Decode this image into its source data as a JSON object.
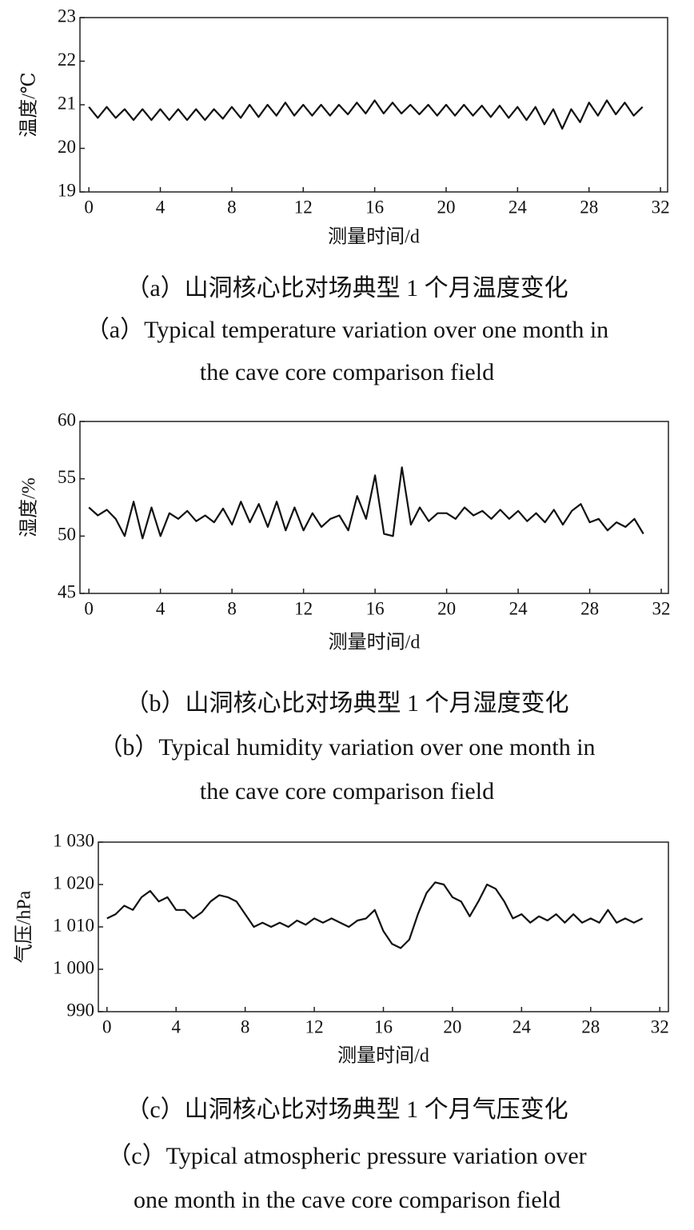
{
  "chart_data": [
    {
      "type": "line",
      "xlabel": "测量时间/d",
      "ylabel": "温度/℃",
      "caption_zh": "（a）山洞核心比对场典型 1 个月温度变化",
      "caption_en": [
        "（a）Typical temperature variation over one month in",
        "the cave core comparison field"
      ],
      "xlim": [
        -0.5,
        32.4
      ],
      "xticks": [
        0,
        4,
        8,
        12,
        16,
        20,
        24,
        28,
        32
      ],
      "ylim": [
        19,
        23
      ],
      "yticks": [
        19,
        20,
        21,
        22,
        23
      ],
      "x": [
        0,
        0.5,
        1,
        1.5,
        2,
        2.5,
        3,
        3.5,
        4,
        4.5,
        5,
        5.5,
        6,
        6.5,
        7,
        7.5,
        8,
        8.5,
        9,
        9.5,
        10,
        10.5,
        11,
        11.5,
        12,
        12.5,
        13,
        13.5,
        14,
        14.5,
        15,
        15.5,
        16,
        16.5,
        17,
        17.5,
        18,
        18.5,
        19,
        19.5,
        20,
        20.5,
        21,
        21.5,
        22,
        22.5,
        23,
        23.5,
        24,
        24.5,
        25,
        25.5,
        26,
        26.5,
        27,
        27.5,
        28,
        28.5,
        29,
        29.5,
        30,
        30.5,
        31
      ],
      "color": "#111111",
      "values": [
        20.95,
        20.7,
        20.95,
        20.7,
        20.9,
        20.65,
        20.9,
        20.65,
        20.9,
        20.65,
        20.9,
        20.65,
        20.9,
        20.65,
        20.9,
        20.68,
        20.95,
        20.7,
        21.0,
        20.72,
        21.0,
        20.75,
        21.05,
        20.75,
        21.0,
        20.75,
        21.0,
        20.75,
        21.0,
        20.78,
        21.05,
        20.8,
        21.1,
        20.8,
        21.05,
        20.8,
        21.0,
        20.78,
        21.0,
        20.75,
        21.0,
        20.75,
        21.0,
        20.75,
        20.98,
        20.72,
        20.98,
        20.7,
        20.95,
        20.65,
        20.95,
        20.55,
        20.9,
        20.45,
        20.9,
        20.6,
        21.05,
        20.75,
        21.1,
        20.78,
        21.05,
        20.75,
        20.95
      ]
    },
    {
      "type": "line",
      "xlabel": "测量时间/d",
      "ylabel": "湿度/%",
      "caption_zh": "（b）山洞核心比对场典型 1 个月湿度变化",
      "caption_en": [
        "（b）Typical humidity variation over one month in",
        "the cave core comparison field"
      ],
      "xlim": [
        -0.5,
        32.4
      ],
      "xticks": [
        0,
        4,
        8,
        12,
        16,
        20,
        24,
        28,
        32
      ],
      "ylim": [
        45,
        60
      ],
      "yticks": [
        45,
        50,
        55,
        60
      ],
      "x": [
        0,
        0.5,
        1,
        1.5,
        2,
        2.5,
        3,
        3.5,
        4,
        4.5,
        5,
        5.5,
        6,
        6.5,
        7,
        7.5,
        8,
        8.5,
        9,
        9.5,
        10,
        10.5,
        11,
        11.5,
        12,
        12.5,
        13,
        13.5,
        14,
        14.5,
        15,
        15.5,
        16,
        16.5,
        17,
        17.5,
        18,
        18.5,
        19,
        19.5,
        20,
        20.5,
        21,
        21.5,
        22,
        22.5,
        23,
        23.5,
        24,
        24.5,
        25,
        25.5,
        26,
        26.5,
        27,
        27.5,
        28,
        28.5,
        29,
        29.5,
        30,
        30.5,
        31
      ],
      "color": "#111111",
      "values": [
        52.5,
        51.8,
        52.3,
        51.5,
        50,
        53,
        49.8,
        52.5,
        50,
        52,
        51.5,
        52.2,
        51.3,
        51.8,
        51.2,
        52.4,
        51,
        53,
        51.2,
        52.8,
        50.8,
        53,
        50.5,
        52.5,
        50.5,
        52,
        50.8,
        51.5,
        51.8,
        50.5,
        53.5,
        51.5,
        55.3,
        50.2,
        50,
        56,
        51,
        52.5,
        51.3,
        52,
        52,
        51.5,
        52.5,
        51.8,
        52.2,
        51.5,
        52.3,
        51.5,
        52.2,
        51.3,
        52,
        51.2,
        52.3,
        51,
        52.2,
        52.8,
        51.2,
        51.5,
        50.5,
        51.2,
        50.8,
        51.5,
        50.2
      ]
    },
    {
      "type": "line",
      "xlabel": "测量时间/d",
      "ylabel": "气压/hPa",
      "caption_zh": "（c）山洞核心比对场典型 1 个月气压变化",
      "caption_en": [
        "（c）Typical atmospheric pressure variation over",
        "one month in the cave core comparison field"
      ],
      "xlim": [
        -0.5,
        32.5
      ],
      "xticks": [
        0,
        4,
        8,
        12,
        16,
        20,
        24,
        28,
        32
      ],
      "ylim": [
        990,
        1030
      ],
      "yticks": [
        990,
        {
          "value": 1000,
          "label": "1 000"
        },
        {
          "value": 1010,
          "label": "1 010"
        },
        {
          "value": 1020,
          "label": "1 020"
        },
        {
          "value": 1030,
          "label": "1 030"
        }
      ],
      "x": [
        0,
        0.5,
        1,
        1.5,
        2,
        2.5,
        3,
        3.5,
        4,
        4.5,
        5,
        5.5,
        6,
        6.5,
        7,
        7.5,
        8,
        8.5,
        9,
        9.5,
        10,
        10.5,
        11,
        11.5,
        12,
        12.5,
        13,
        13.5,
        14,
        14.5,
        15,
        15.5,
        16,
        16.5,
        17,
        17.5,
        18,
        18.5,
        19,
        19.5,
        20,
        20.5,
        21,
        21.5,
        22,
        22.5,
        23,
        23.5,
        24,
        24.5,
        25,
        25.5,
        26,
        26.5,
        27,
        27.5,
        28,
        28.5,
        29,
        29.5,
        30,
        30.5,
        31
      ],
      "color": "#111111",
      "values": [
        1012,
        1013,
        1015,
        1014,
        1017,
        1018.5,
        1016,
        1017,
        1014,
        1014,
        1012,
        1013.5,
        1016,
        1017.5,
        1017,
        1016,
        1013,
        1010,
        1011,
        1010,
        1011,
        1010,
        1011.5,
        1010.5,
        1012,
        1011,
        1012,
        1011,
        1010,
        1011.5,
        1012,
        1014,
        1009,
        1006,
        1005,
        1007,
        1013,
        1018,
        1020.5,
        1020,
        1017,
        1016,
        1012.5,
        1016,
        1020,
        1019,
        1016,
        1012,
        1013,
        1011,
        1012.5,
        1011.5,
        1013,
        1011,
        1013,
        1011,
        1012,
        1011,
        1014,
        1011,
        1012,
        1011,
        1012
      ]
    }
  ]
}
